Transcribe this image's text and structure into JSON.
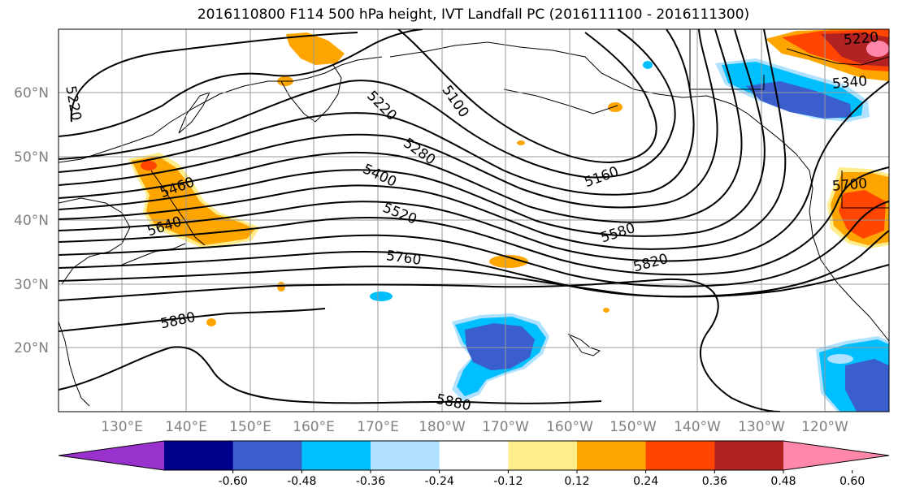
{
  "title": "2016110800 F114 500 hPa height, IVT Landfall PC (2016111100 - 2016111300)",
  "lat_labels": [
    "60°N",
    "50°N",
    "40°N",
    "30°N",
    "20°N"
  ],
  "lon_labels": [
    "130°E",
    "140°E",
    "150°E",
    "160°E",
    "170°E",
    "180°W",
    "170°W",
    "160°W",
    "150°W",
    "140°W",
    "130°W",
    "120°W"
  ],
  "contour_labels": [
    "5220",
    "5100",
    "5220",
    "5280",
    "5160",
    "5400",
    "5460",
    "5520",
    "5580",
    "5640",
    "5760",
    "5820",
    "5880",
    "5880",
    "5700",
    "5340",
    "5220"
  ],
  "colorbar": {
    "colors": [
      "#9932cc",
      "#00008b",
      "#3a5fcd",
      "#00bfff",
      "#b0e2ff",
      "#ffffff",
      "#ffec8b",
      "#ffa500",
      "#ff4500",
      "#b22222",
      "#ff88aa"
    ],
    "tick_labels": [
      "-0.60",
      "-0.48",
      "-0.36",
      "-0.24",
      "-0.12",
      "0.12",
      "0.24",
      "0.36",
      "0.48",
      "0.60"
    ]
  },
  "palette": {
    "orange": "#ffa500",
    "light_yellow": "#ffec8b",
    "red_orange": "#ff4500",
    "dark_red": "#b22222",
    "pink": "#ff88aa",
    "sky_blue": "#00bfff",
    "royal_blue": "#3a5fcd",
    "pale_blue": "#b0e2ff"
  }
}
